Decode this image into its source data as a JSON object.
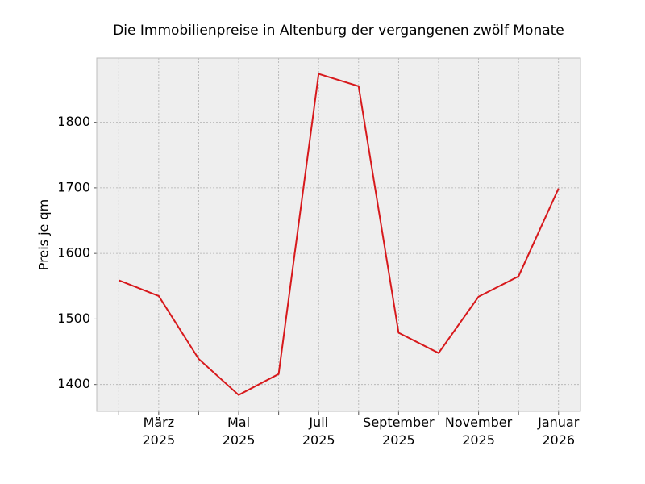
{
  "chart_data": {
    "type": "line",
    "title": "Die Immobilienpreise in Altenburg der vergangenen zwölf Monate",
    "y_label": "Preis je qm",
    "categories": [
      null,
      "März\n2025",
      null,
      "Mai\n2025",
      null,
      "Juli\n2025",
      null,
      "September\n2025",
      null,
      "November\n2025",
      null,
      "Januar\n2026"
    ],
    "series": [
      {
        "name": "Preis je qm",
        "color": "#d7191c",
        "values": [
          1559,
          1535,
          1439,
          1384,
          1416,
          1874,
          1855,
          1479,
          1448,
          1534,
          1565,
          1699
        ]
      }
    ],
    "ylim": [
      1359,
      1898
    ],
    "yticks": [
      1400,
      1500,
      1600,
      1700,
      1800
    ],
    "grid": true
  }
}
